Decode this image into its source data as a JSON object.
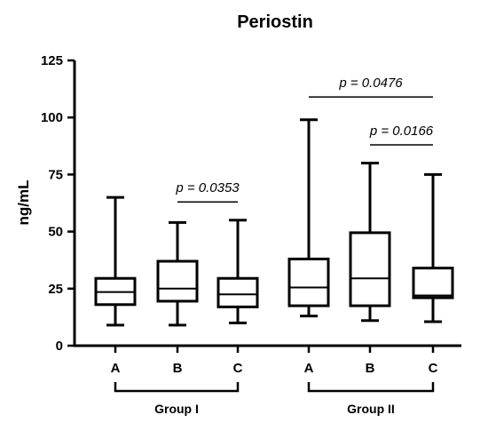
{
  "chart_data": {
    "type": "box",
    "title": "Periostin",
    "ylabel": "ng/mL",
    "xlabel": "",
    "ylim": [
      0,
      125
    ],
    "yticks": [
      "0",
      "25",
      "50",
      "75",
      "100",
      "125"
    ],
    "yticks_values": [
      0,
      25,
      50,
      75,
      100,
      125
    ],
    "grid": false,
    "categories": [
      "A",
      "B",
      "C",
      "A",
      "B",
      "C"
    ],
    "boxes": [
      {
        "label": "A",
        "group": "Group I",
        "min": 9,
        "q1": 18,
        "median": 23.5,
        "q3": 29.5,
        "max": 65
      },
      {
        "label": "B",
        "group": "Group I",
        "min": 9,
        "q1": 19.5,
        "median": 25,
        "q3": 37,
        "max": 54
      },
      {
        "label": "C",
        "group": "Group I",
        "min": 10,
        "q1": 17,
        "median": 22.5,
        "q3": 29.5,
        "max": 55
      },
      {
        "label": "A",
        "group": "Group II",
        "min": 13,
        "q1": 17.5,
        "median": 25.5,
        "q3": 38,
        "max": 99
      },
      {
        "label": "B",
        "group": "Group II",
        "min": 11,
        "q1": 17.5,
        "median": 29.5,
        "q3": 49.5,
        "max": 80
      },
      {
        "label": "C",
        "group": "Group II",
        "min": 10.5,
        "q1": 21,
        "median": 22,
        "q3": 34,
        "max": 75
      }
    ],
    "groups": [
      {
        "name": "Group I",
        "members": [
          0,
          1,
          2
        ]
      },
      {
        "name": "Group II",
        "members": [
          3,
          4,
          5
        ]
      }
    ],
    "annotations": [
      {
        "text": "p = 0.0476",
        "from": 3,
        "to": 5,
        "level": 109
      },
      {
        "text": "p = 0.0166",
        "from": 4,
        "to": 5,
        "level": 88
      },
      {
        "text": "p = 0.0353",
        "from": 1,
        "to": 2,
        "level": 63
      }
    ]
  }
}
